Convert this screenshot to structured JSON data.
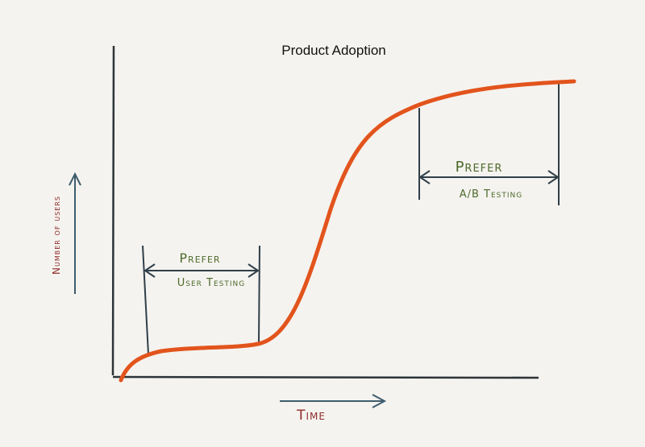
{
  "title": "Product Adoption",
  "axes": {
    "y_label": "Number of users",
    "x_label": "Time"
  },
  "annotations": [
    {
      "line1": "Prefer",
      "line2": "User Testing"
    },
    {
      "line1": "Prefer",
      "line2": "A/B Testing"
    }
  ]
}
